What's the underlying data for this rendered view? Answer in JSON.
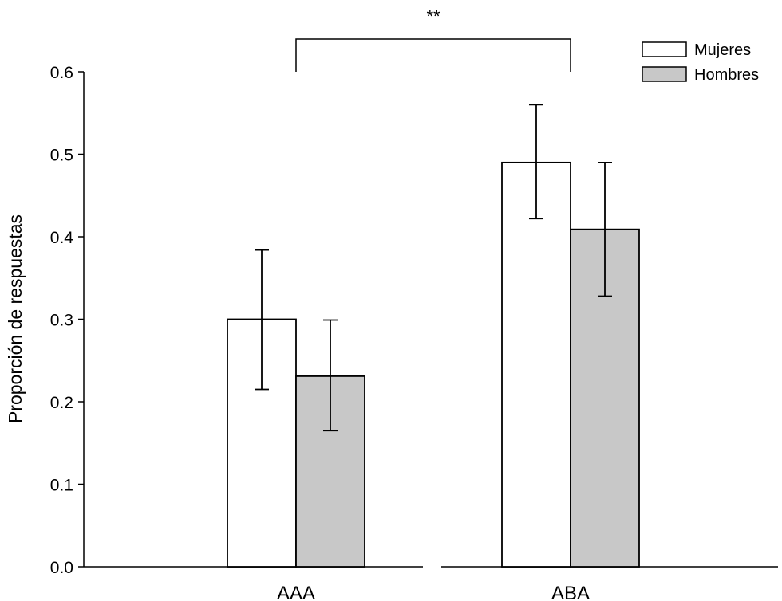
{
  "chart_data": {
    "type": "bar",
    "categories": [
      "AAA",
      "ABA"
    ],
    "series": [
      {
        "name": "Mujeres",
        "values": [
          0.3,
          0.49
        ],
        "err_low": [
          0.215,
          0.422
        ],
        "err_high": [
          0.384,
          0.56
        ],
        "color": "#ffffff"
      },
      {
        "name": "Hombres",
        "values": [
          0.231,
          0.409
        ],
        "err_low": [
          0.165,
          0.328
        ],
        "err_high": [
          0.299,
          0.49
        ],
        "color": "#c8c8c8"
      }
    ],
    "title": "",
    "xlabel": "",
    "ylabel": "Proporción de respuestas",
    "ylim": [
      0,
      0.6
    ],
    "yticks": [
      "0.0",
      "0.1",
      "0.2",
      "0.3",
      "0.4",
      "0.5",
      "0.6"
    ],
    "significance": {
      "label": "**",
      "between": [
        "AAA",
        "ABA"
      ],
      "series": "Mujeres"
    },
    "legend": "top-right",
    "grid": false
  }
}
